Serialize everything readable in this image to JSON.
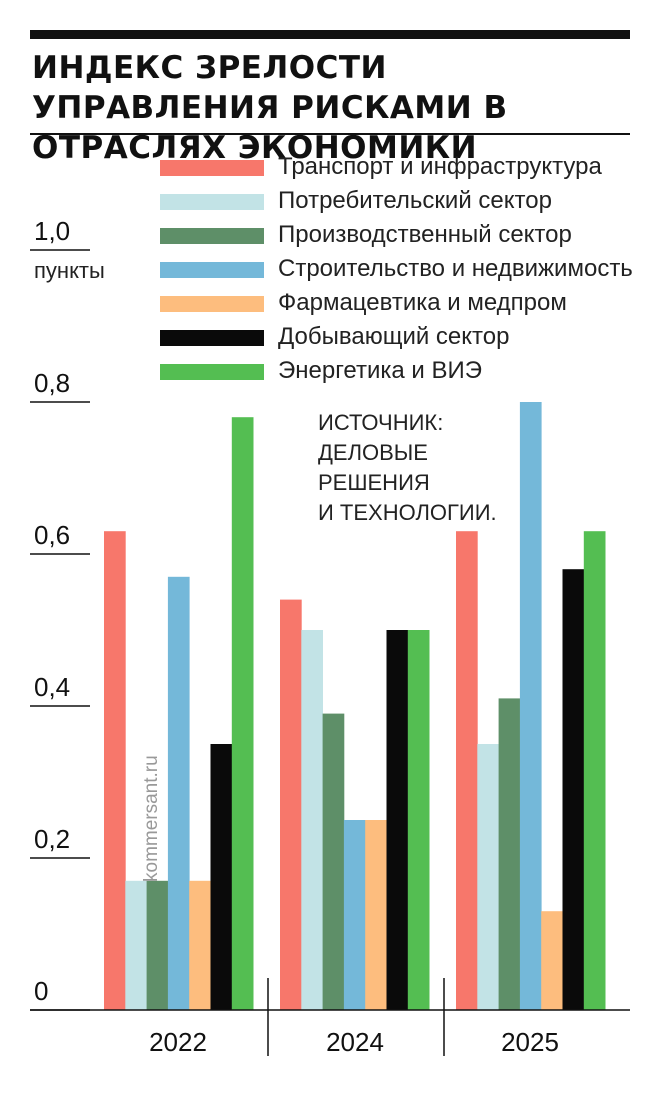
{
  "title": "ИНДЕКС ЗРЕЛОСТИ УПРАВЛЕНИЯ РИСКАМИ В ОТРАСЛЯХ ЭКОНОМИКИ",
  "unit_label": "пункты",
  "source_text": "ИСТОЧНИК:\nДЕЛОВЫЕ\nРЕШЕНИЯ\nИ ТЕХНОЛОГИИ.",
  "watermark": "kommersant.ru",
  "legend": [
    {
      "label": "Транспорт и инфраструктура",
      "color": "#F7776B"
    },
    {
      "label": "Потребительский сектор",
      "color": "#C2E3E6"
    },
    {
      "label": "Производственный сектор",
      "color": "#5E8F68"
    },
    {
      "label": "Строительство и недвижимость",
      "color": "#74B8D9"
    },
    {
      "label": "Фармацевтика и медпром",
      "color": "#FDBD7E"
    },
    {
      "label": "Добывающий сектор",
      "color": "#0A0A0A"
    },
    {
      "label": "Энергетика и ВИЭ",
      "color": "#54BE52"
    }
  ],
  "chart_data": {
    "type": "bar",
    "title": "ИНДЕКС ЗРЕЛОСТИ УПРАВЛЕНИЯ РИСКАМИ В ОТРАСЛЯХ ЭКОНОМИКИ",
    "ylabel": "пункты",
    "xlabel": "",
    "ylim": [
      0,
      1.0
    ],
    "yticks": [
      "0",
      "0,2",
      "0,4",
      "0,6",
      "0,8",
      "1,0"
    ],
    "grid": false,
    "legend_position": "top",
    "categories": [
      "2022",
      "2024",
      "2025"
    ],
    "series": [
      {
        "name": "Транспорт и инфраструктура",
        "color": "#F7776B",
        "values": [
          0.63,
          0.54,
          0.63
        ]
      },
      {
        "name": "Потребительский сектор",
        "color": "#C2E3E6",
        "values": [
          0.17,
          0.5,
          0.35
        ]
      },
      {
        "name": "Производственный сектор",
        "color": "#5E8F68",
        "values": [
          0.17,
          0.39,
          0.41
        ]
      },
      {
        "name": "Строительство и недвижимость",
        "color": "#74B8D9",
        "values": [
          0.57,
          0.25,
          0.8
        ]
      },
      {
        "name": "Фармацевтика и медпром",
        "color": "#FDBD7E",
        "values": [
          0.17,
          0.25,
          0.13
        ]
      },
      {
        "name": "Добывающий сектор",
        "color": "#0A0A0A",
        "values": [
          0.35,
          0.5,
          0.58
        ]
      },
      {
        "name": "Энергетика и ВИЭ",
        "color": "#54BE52",
        "values": [
          0.78,
          0.5,
          0.63
        ]
      }
    ]
  }
}
